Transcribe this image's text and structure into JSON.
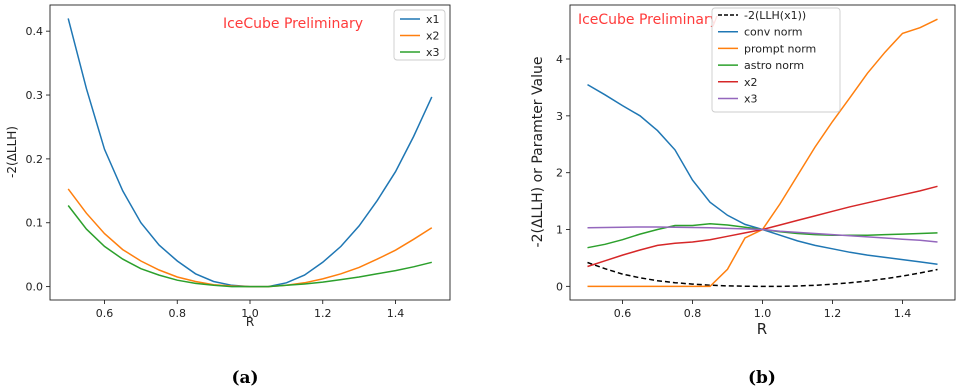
{
  "chart_data": [
    {
      "type": "line",
      "panel_label": "(a)",
      "watermark": "IceCube Preliminary",
      "xlabel": "R",
      "ylabel": "-2(ΔLLH)",
      "xlim": [
        0.45,
        1.55
      ],
      "ylim": [
        -0.021,
        0.441
      ],
      "xticks": [
        "0.6",
        "0.8",
        "1.0",
        "1.2",
        "1.4"
      ],
      "yticks": [
        "0.0",
        "0.1",
        "0.2",
        "0.3",
        "0.4"
      ],
      "legend_position": "top-right",
      "series": [
        {
          "name": "x1",
          "color": "#1f77b4",
          "dash": "",
          "x": [
            0.5,
            0.55,
            0.6,
            0.65,
            0.7,
            0.75,
            0.8,
            0.85,
            0.9,
            0.95,
            1.0,
            1.05,
            1.1,
            1.15,
            1.2,
            1.25,
            1.3,
            1.35,
            1.4,
            1.45,
            1.5
          ],
          "y": [
            0.42,
            0.31,
            0.215,
            0.15,
            0.1,
            0.065,
            0.04,
            0.02,
            0.008,
            0.002,
            0.0,
            0.0,
            0.006,
            0.018,
            0.038,
            0.063,
            0.095,
            0.135,
            0.18,
            0.235,
            0.297
          ]
        },
        {
          "name": "x2",
          "color": "#ff7f0e",
          "dash": "",
          "x": [
            0.5,
            0.55,
            0.6,
            0.65,
            0.7,
            0.75,
            0.8,
            0.85,
            0.9,
            0.95,
            1.0,
            1.05,
            1.1,
            1.15,
            1.2,
            1.25,
            1.3,
            1.35,
            1.4,
            1.45,
            1.5
          ],
          "y": [
            0.153,
            0.115,
            0.083,
            0.058,
            0.04,
            0.026,
            0.015,
            0.008,
            0.003,
            0.001,
            0.0,
            0.0,
            0.002,
            0.006,
            0.012,
            0.02,
            0.03,
            0.043,
            0.057,
            0.074,
            0.092
          ]
        },
        {
          "name": "x3",
          "color": "#2ca02c",
          "dash": "",
          "x": [
            0.5,
            0.55,
            0.6,
            0.65,
            0.7,
            0.75,
            0.8,
            0.85,
            0.9,
            0.95,
            1.0,
            1.05,
            1.1,
            1.15,
            1.2,
            1.25,
            1.3,
            1.35,
            1.4,
            1.45,
            1.5
          ],
          "y": [
            0.127,
            0.09,
            0.063,
            0.043,
            0.028,
            0.018,
            0.01,
            0.005,
            0.002,
            0.0,
            0.0,
            0.0,
            0.002,
            0.004,
            0.007,
            0.011,
            0.015,
            0.02,
            0.025,
            0.031,
            0.038
          ]
        }
      ]
    },
    {
      "type": "line",
      "panel_label": "(b)",
      "watermark": "IceCube Preliminary",
      "xlabel": "R",
      "ylabel": "-2(ΔLLH) or Paramter Value",
      "xlim": [
        0.45,
        1.55
      ],
      "ylim": [
        -0.24,
        4.95
      ],
      "xticks": [
        "0.6",
        "0.8",
        "1.0",
        "1.2",
        "1.4"
      ],
      "yticks": [
        "0",
        "1",
        "2",
        "3",
        "4"
      ],
      "legend_position": "top-left",
      "series": [
        {
          "name": "-2(LLH(x1))",
          "color": "#000000",
          "dash": "5,3",
          "x": [
            0.5,
            0.55,
            0.6,
            0.65,
            0.7,
            0.75,
            0.8,
            0.85,
            0.9,
            0.95,
            1.0,
            1.05,
            1.1,
            1.15,
            1.2,
            1.25,
            1.3,
            1.35,
            1.4,
            1.45,
            1.5
          ],
          "y": [
            0.42,
            0.31,
            0.215,
            0.15,
            0.1,
            0.065,
            0.04,
            0.02,
            0.008,
            0.002,
            0.0,
            0.0,
            0.006,
            0.018,
            0.038,
            0.063,
            0.095,
            0.135,
            0.18,
            0.235,
            0.297
          ]
        },
        {
          "name": "conv norm",
          "color": "#1f77b4",
          "dash": "",
          "x": [
            0.5,
            0.55,
            0.6,
            0.65,
            0.7,
            0.75,
            0.8,
            0.85,
            0.9,
            0.95,
            1.0,
            1.05,
            1.1,
            1.15,
            1.2,
            1.25,
            1.3,
            1.35,
            1.4,
            1.45,
            1.5
          ],
          "y": [
            3.55,
            3.37,
            3.18,
            3.0,
            2.74,
            2.4,
            1.87,
            1.48,
            1.25,
            1.09,
            1.0,
            0.9,
            0.8,
            0.72,
            0.66,
            0.6,
            0.55,
            0.51,
            0.47,
            0.43,
            0.39
          ]
        },
        {
          "name": "prompt norm",
          "color": "#ff7f0e",
          "dash": "",
          "x": [
            0.5,
            0.55,
            0.6,
            0.65,
            0.7,
            0.75,
            0.8,
            0.85,
            0.9,
            0.95,
            1.0,
            1.05,
            1.1,
            1.15,
            1.2,
            1.25,
            1.3,
            1.35,
            1.4,
            1.45,
            1.5
          ],
          "y": [
            0.0,
            0.0,
            0.0,
            0.0,
            0.0,
            0.0,
            0.0,
            0.0,
            0.3,
            0.85,
            1.0,
            1.45,
            1.95,
            2.45,
            2.9,
            3.32,
            3.75,
            4.12,
            4.45,
            4.55,
            4.7
          ]
        },
        {
          "name": "astro norm",
          "color": "#2ca02c",
          "dash": "",
          "x": [
            0.5,
            0.55,
            0.6,
            0.65,
            0.7,
            0.75,
            0.8,
            0.85,
            0.9,
            0.95,
            1.0,
            1.05,
            1.1,
            1.15,
            1.2,
            1.25,
            1.3,
            1.35,
            1.4,
            1.45,
            1.5
          ],
          "y": [
            0.68,
            0.74,
            0.82,
            0.92,
            1.0,
            1.07,
            1.07,
            1.1,
            1.08,
            1.04,
            1.0,
            0.96,
            0.93,
            0.91,
            0.9,
            0.9,
            0.9,
            0.91,
            0.92,
            0.93,
            0.94
          ]
        },
        {
          "name": "x2",
          "color": "#d62728",
          "dash": "",
          "x": [
            0.5,
            0.55,
            0.6,
            0.65,
            0.7,
            0.75,
            0.8,
            0.85,
            0.9,
            0.95,
            1.0,
            1.05,
            1.1,
            1.15,
            1.2,
            1.25,
            1.3,
            1.35,
            1.4,
            1.45,
            1.5
          ],
          "y": [
            0.35,
            0.45,
            0.55,
            0.64,
            0.72,
            0.76,
            0.78,
            0.82,
            0.88,
            0.94,
            1.0,
            1.08,
            1.16,
            1.24,
            1.32,
            1.4,
            1.47,
            1.54,
            1.61,
            1.68,
            1.76
          ]
        },
        {
          "name": "x3",
          "color": "#9467bd",
          "dash": "",
          "x": [
            0.5,
            0.55,
            0.6,
            0.65,
            0.7,
            0.75,
            0.8,
            0.85,
            0.9,
            0.95,
            1.0,
            1.05,
            1.1,
            1.15,
            1.2,
            1.25,
            1.3,
            1.35,
            1.4,
            1.45,
            1.5
          ],
          "y": [
            1.03,
            1.035,
            1.04,
            1.045,
            1.045,
            1.04,
            1.035,
            1.03,
            1.02,
            1.01,
            1.0,
            0.97,
            0.95,
            0.93,
            0.91,
            0.89,
            0.87,
            0.85,
            0.83,
            0.81,
            0.78
          ]
        }
      ]
    }
  ]
}
